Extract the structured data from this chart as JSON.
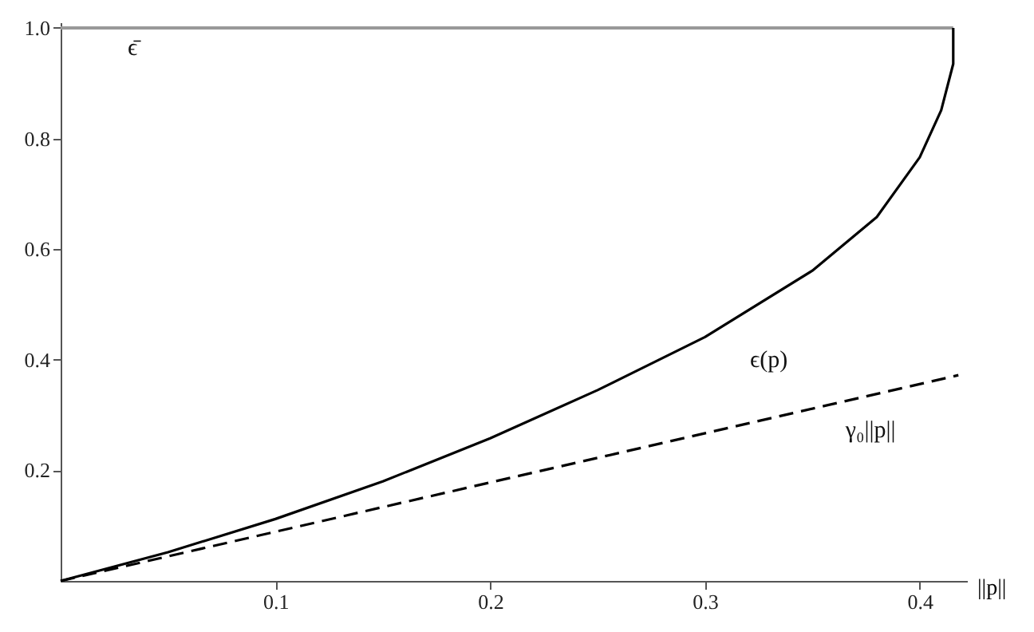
{
  "chart_data": {
    "type": "line",
    "xlabel": "||p||",
    "xlim": [
      0,
      0.422
    ],
    "ylim": [
      0,
      1.01
    ],
    "xticks": [
      0.1,
      0.2,
      0.3,
      0.4
    ],
    "yticks": [
      0.2,
      0.4,
      0.6,
      {
        "value": 0.8,
        "label": "0.8"
      },
      {
        "value": 1.0,
        "label": "1.0"
      }
    ],
    "grid": false,
    "marker": "none",
    "series": [
      {
        "name": "ϵ̄",
        "color": "#999999",
        "line_style": "solid",
        "x": [
          0,
          0.4156
        ],
        "values": [
          1.0,
          1.0
        ]
      },
      {
        "name": "ϵ(p)",
        "color": "#000000",
        "line_style": "solid",
        "x": [
          0,
          0.05,
          0.1,
          0.15,
          0.2,
          0.25,
          0.3,
          0.35,
          0.38,
          0.4,
          0.41,
          0.4156,
          0.4156
        ],
        "values": [
          0,
          0.052,
          0.112,
          0.18,
          0.258,
          0.345,
          0.441,
          0.561,
          0.658,
          0.766,
          0.851,
          0.935,
          1.0
        ]
      },
      {
        "name": "γ₀||p||",
        "color": "#000000",
        "line_style": "dashed",
        "x": [
          0,
          0.418
        ],
        "values": [
          0,
          0.372
        ]
      }
    ]
  }
}
